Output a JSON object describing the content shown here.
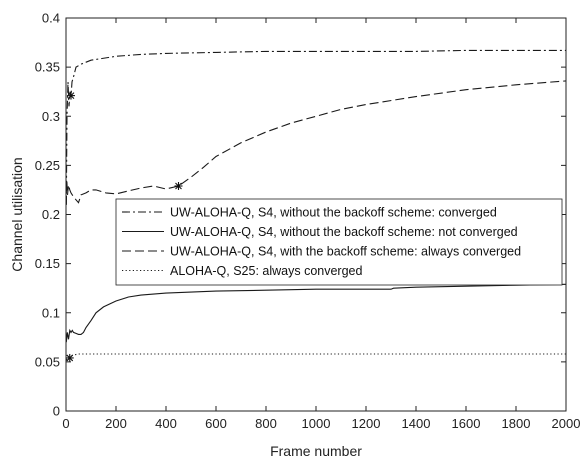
{
  "chart_data": {
    "type": "line",
    "xlabel": "Frame number",
    "ylabel": "Channel utilisation",
    "xlim": [
      0,
      2000
    ],
    "ylim": [
      0,
      0.4
    ],
    "xticks": [
      0,
      200,
      400,
      600,
      800,
      1000,
      1200,
      1400,
      1600,
      1800,
      2000
    ],
    "yticks": [
      0,
      0.05,
      0.1,
      0.15,
      0.2,
      0.25,
      0.3,
      0.35,
      0.4
    ],
    "grid": false,
    "legend_position": "middle-right",
    "series": [
      {
        "name": "UW-ALOHA-Q, S4, without the backoff scheme: converged",
        "style": "dashdot",
        "x": [
          1,
          4,
          8,
          12,
          16,
          20,
          24,
          30,
          40,
          60,
          100,
          200,
          300,
          400,
          600,
          800,
          1000,
          1200,
          1400,
          1600,
          1800,
          2000
        ],
        "y": [
          0.21,
          0.3,
          0.335,
          0.31,
          0.325,
          0.32,
          0.335,
          0.34,
          0.35,
          0.353,
          0.357,
          0.361,
          0.363,
          0.364,
          0.365,
          0.366,
          0.366,
          0.366,
          0.366,
          0.367,
          0.367,
          0.367
        ],
        "marker": {
          "x": 20,
          "y": 0.321
        }
      },
      {
        "name": "UW-ALOHA-Q, S4, without the backoff scheme: not converged",
        "style": "solid",
        "x": [
          1,
          5,
          10,
          15,
          20,
          25,
          30,
          40,
          50,
          60,
          70,
          80,
          100,
          120,
          150,
          200,
          250,
          300,
          400,
          500,
          600,
          800,
          1000,
          1200,
          1300,
          1310,
          1400,
          1600,
          1800,
          2000
        ],
        "y": [
          0.07,
          0.08,
          0.073,
          0.082,
          0.08,
          0.082,
          0.08,
          0.079,
          0.078,
          0.078,
          0.08,
          0.085,
          0.092,
          0.1,
          0.106,
          0.112,
          0.116,
          0.118,
          0.12,
          0.121,
          0.122,
          0.123,
          0.124,
          0.124,
          0.124,
          0.125,
          0.126,
          0.127,
          0.128,
          0.129
        ],
        "marker": {
          "x": 15,
          "y": 0.054
        }
      },
      {
        "name": "UW-ALOHA-Q, S4, with the backoff scheme: always converged",
        "style": "dashed",
        "x": [
          1,
          3,
          6,
          10,
          15,
          20,
          30,
          40,
          50,
          60,
          80,
          100,
          120,
          160,
          200,
          250,
          300,
          350,
          400,
          450,
          500,
          550,
          600,
          700,
          800,
          900,
          1000,
          1100,
          1200,
          1400,
          1600,
          1800,
          2000
        ],
        "y": [
          0.21,
          0.235,
          0.22,
          0.23,
          0.225,
          0.222,
          0.218,
          0.215,
          0.212,
          0.22,
          0.222,
          0.225,
          0.225,
          0.222,
          0.221,
          0.224,
          0.227,
          0.229,
          0.226,
          0.229,
          0.238,
          0.248,
          0.259,
          0.273,
          0.284,
          0.293,
          0.3,
          0.307,
          0.312,
          0.32,
          0.327,
          0.332,
          0.336
        ],
        "marker": {
          "x": 450,
          "y": 0.229
        }
      },
      {
        "name": "ALOHA-Q, S25: always converged",
        "style": "dotted",
        "x": [
          1,
          5,
          10,
          20,
          30,
          50,
          100,
          200,
          400,
          600,
          800,
          1000,
          1200,
          1400,
          1600,
          1800,
          2000
        ],
        "y": [
          0.052,
          0.054,
          0.055,
          0.056,
          0.057,
          0.058,
          0.058,
          0.058,
          0.058,
          0.058,
          0.058,
          0.058,
          0.058,
          0.058,
          0.058,
          0.058,
          0.058
        ]
      }
    ]
  }
}
